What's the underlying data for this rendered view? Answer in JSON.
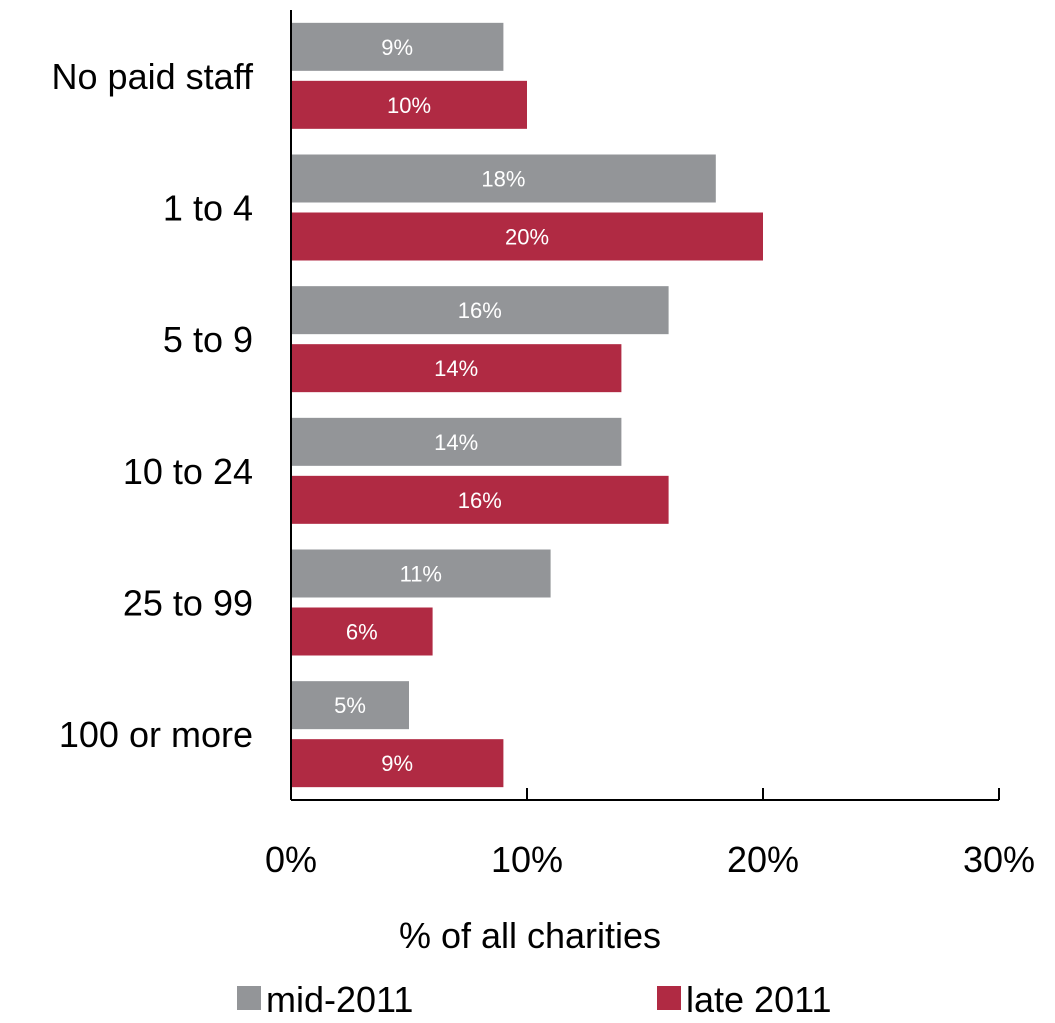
{
  "chart_data": {
    "type": "bar",
    "orientation": "horizontal",
    "categories": [
      "No paid staff",
      "1 to 4",
      "5 to 9",
      "10 to 24",
      "25 to 99",
      "100 or more"
    ],
    "series": [
      {
        "name": "mid-2011",
        "color": "#939598",
        "values": [
          9,
          18,
          16,
          14,
          11,
          5
        ]
      },
      {
        "name": "late 2011",
        "color": "#b02a43",
        "values": [
          10,
          20,
          14,
          16,
          6,
          9
        ]
      }
    ],
    "value_suffix": "%",
    "xlabel": "% of all charities",
    "xlim": [
      0,
      30
    ],
    "xticks": [
      0,
      10,
      20,
      30
    ],
    "xtick_labels": [
      "0%",
      "10%",
      "20%",
      "30%"
    ],
    "grid": false,
    "legend_position": "bottom"
  }
}
